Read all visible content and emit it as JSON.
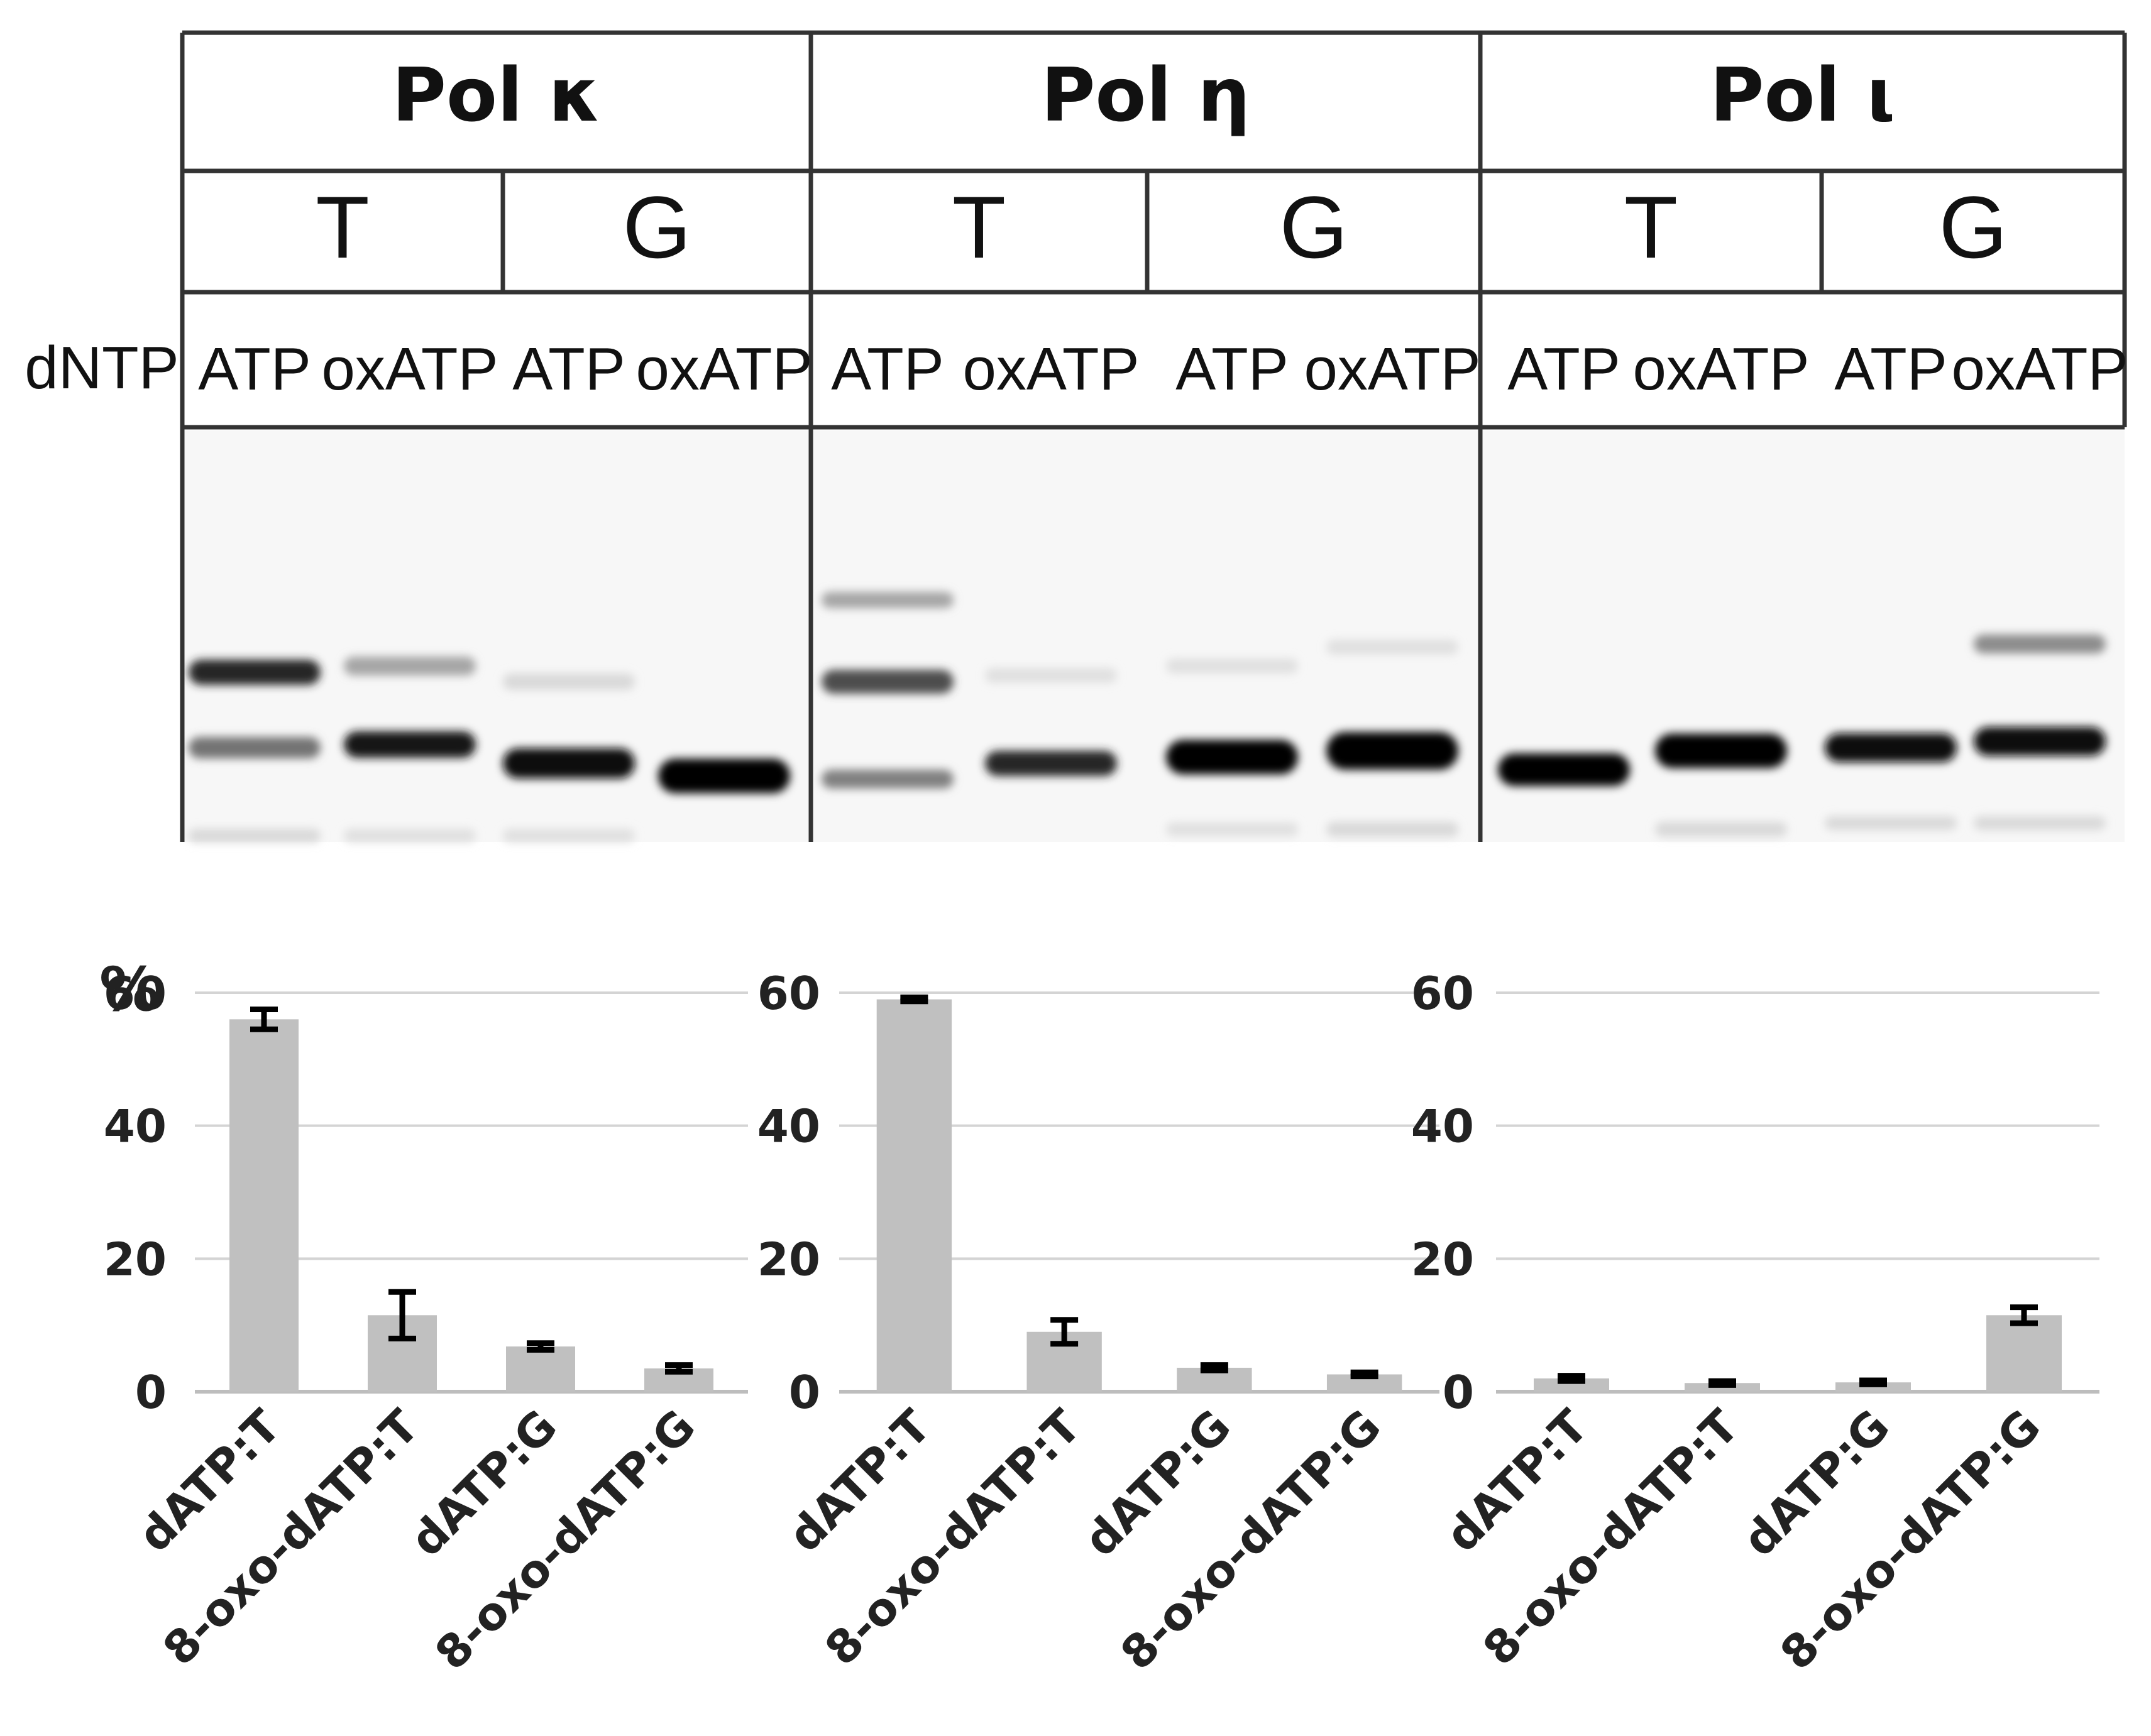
{
  "gel": {
    "dntp_label": "dNTP",
    "groups": [
      {
        "name": "Pol κ",
        "templates": [
          {
            "base": "T",
            "lanes": [
              "ATP",
              "oxATP"
            ]
          },
          {
            "base": "G",
            "lanes": [
              "ATP",
              "oxATP"
            ]
          }
        ]
      },
      {
        "name": "Pol η",
        "templates": [
          {
            "base": "T",
            "lanes": [
              "ATP",
              "oxATP"
            ]
          },
          {
            "base": "G",
            "lanes": [
              "ATP",
              "oxATP"
            ]
          }
        ]
      },
      {
        "name": "Pol ι",
        "templates": [
          {
            "base": "T",
            "lanes": [
              "ATP",
              "oxATP"
            ]
          },
          {
            "base": "G",
            "lanes": [
              "ATP",
              "oxATP"
            ]
          }
        ]
      }
    ]
  },
  "chart_data": [
    {
      "type": "bar",
      "ylabel": "%",
      "ylim": [
        0,
        60
      ],
      "yticks": [
        0,
        20,
        40,
        60
      ],
      "grid": true,
      "categories": [
        "dATP:T",
        "8-oxo-dATP:T",
        "dATP:G",
        "8-oxo-dATP:G"
      ],
      "values": [
        56,
        11.5,
        6.8,
        3.5
      ],
      "errors": [
        1.5,
        3.5,
        0.5,
        0.5
      ],
      "bar_color": "#c0c0c0"
    },
    {
      "type": "bar",
      "ylabel": "",
      "ylim": [
        0,
        60
      ],
      "yticks": [
        0,
        20,
        40,
        60
      ],
      "grid": true,
      "categories": [
        "dATP:T",
        "8-oxo-dATP:T",
        "dATP:G",
        "8-oxo-dATP:G"
      ],
      "values": [
        59,
        9,
        3.6,
        2.6
      ],
      "errors": [
        0.3,
        1.8,
        0.4,
        0.3
      ],
      "bar_color": "#c0c0c0"
    },
    {
      "type": "bar",
      "ylabel": "",
      "ylim": [
        0,
        60
      ],
      "yticks": [
        0,
        20,
        40,
        60
      ],
      "grid": true,
      "categories": [
        "dATP:T",
        "8-oxo-dATP:T",
        "dATP:G",
        "8-oxo-dATP:G"
      ],
      "values": [
        2,
        1.3,
        1.4,
        11.5
      ],
      "errors": [
        0.4,
        0.3,
        0.3,
        1.2
      ],
      "bar_color": "#c0c0c0"
    }
  ]
}
